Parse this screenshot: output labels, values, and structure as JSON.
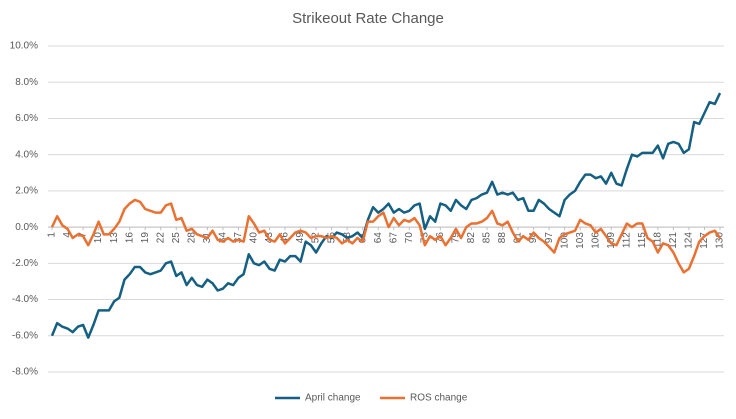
{
  "chart_data": {
    "type": "line",
    "title": "Strikeout Rate Change",
    "x": [
      1,
      2,
      3,
      4,
      5,
      6,
      7,
      8,
      9,
      10,
      11,
      12,
      13,
      14,
      15,
      16,
      17,
      18,
      19,
      20,
      21,
      22,
      23,
      24,
      25,
      26,
      27,
      28,
      29,
      30,
      31,
      32,
      33,
      34,
      35,
      36,
      37,
      38,
      39,
      40,
      41,
      42,
      43,
      44,
      45,
      46,
      47,
      48,
      49,
      50,
      51,
      52,
      53,
      54,
      55,
      56,
      57,
      58,
      59,
      60,
      61,
      62,
      63,
      64,
      65,
      66,
      67,
      68,
      69,
      70,
      71,
      72,
      73,
      74,
      75,
      76,
      77,
      78,
      79,
      80,
      81,
      82,
      83,
      84,
      85,
      86,
      87,
      88,
      89,
      90,
      91,
      92,
      93,
      94,
      95,
      96,
      97,
      98,
      99,
      100,
      101,
      102,
      103,
      104,
      105,
      106,
      107,
      108,
      109,
      110,
      111,
      112,
      113,
      114,
      115,
      116,
      117,
      118,
      119,
      120,
      121,
      122,
      123,
      124,
      125,
      126,
      127,
      128,
      129,
      130
    ],
    "xlim": [
      1,
      130
    ],
    "xticks": [
      1,
      4,
      7,
      10,
      13,
      16,
      19,
      22,
      25,
      28,
      31,
      34,
      37,
      40,
      43,
      46,
      49,
      52,
      55,
      58,
      61,
      64,
      67,
      70,
      73,
      76,
      79,
      82,
      85,
      88,
      91,
      94,
      97,
      100,
      103,
      106,
      109,
      112,
      115,
      118,
      121,
      124,
      127,
      130
    ],
    "ylim": [
      -8,
      10
    ],
    "yticks": [
      {
        "value": -8,
        "label": "-8.0%"
      },
      {
        "value": -6,
        "label": "-6.0%"
      },
      {
        "value": -4,
        "label": "-4.0%"
      },
      {
        "value": -2,
        "label": "-2.0%"
      },
      {
        "value": 0,
        "label": "0.0%"
      },
      {
        "value": 2,
        "label": "2.0%"
      },
      {
        "value": 4,
        "label": "4.0%"
      },
      {
        "value": 6,
        "label": "6.0%"
      },
      {
        "value": 8,
        "label": "8.0%"
      },
      {
        "value": 10,
        "label": "10.0%"
      }
    ],
    "grid": true,
    "legend": "bottom",
    "series": [
      {
        "name": "April change",
        "color": "#156082",
        "values": [
          -6.0,
          -5.3,
          -5.5,
          -5.6,
          -5.8,
          -5.5,
          -5.4,
          -6.1,
          -5.4,
          -4.6,
          -4.6,
          -4.6,
          -4.1,
          -3.9,
          -2.9,
          -2.6,
          -2.2,
          -2.2,
          -2.5,
          -2.6,
          -2.5,
          -2.4,
          -2.0,
          -1.9,
          -2.7,
          -2.5,
          -3.2,
          -2.8,
          -3.2,
          -3.3,
          -2.9,
          -3.1,
          -3.5,
          -3.4,
          -3.1,
          -3.2,
          -2.8,
          -2.6,
          -1.5,
          -2.0,
          -2.1,
          -1.9,
          -2.3,
          -2.4,
          -1.8,
          -1.9,
          -1.6,
          -1.6,
          -1.9,
          -0.8,
          -1.0,
          -1.4,
          -0.9,
          -0.5,
          -0.6,
          -0.3,
          -0.4,
          -0.6,
          -0.5,
          -0.3,
          -0.6,
          0.4,
          1.1,
          0.8,
          1.0,
          1.3,
          0.8,
          1.0,
          0.8,
          0.9,
          1.2,
          1.3,
          -0.1,
          0.6,
          0.3,
          1.3,
          1.2,
          0.9,
          1.5,
          1.2,
          1.0,
          1.5,
          1.6,
          1.8,
          1.9,
          2.5,
          1.8,
          1.9,
          1.8,
          1.9,
          1.5,
          1.6,
          0.9,
          0.9,
          1.5,
          1.3,
          1.0,
          0.8,
          0.6,
          1.5,
          1.8,
          2.0,
          2.5,
          2.9,
          2.9,
          2.7,
          2.8,
          2.4,
          3.0,
          2.4,
          2.3,
          3.2,
          4.0,
          3.9,
          4.1,
          4.1,
          4.1,
          4.5,
          3.8,
          4.6,
          4.7,
          4.6,
          4.1,
          4.3,
          5.8,
          5.7,
          6.3,
          6.9,
          6.8,
          7.4
        ]
      },
      {
        "name": "ROS change",
        "color": "#e97132",
        "values": [
          0.0,
          0.6,
          0.1,
          -0.1,
          -0.6,
          -0.4,
          -0.5,
          -1.0,
          -0.4,
          0.3,
          -0.4,
          -0.4,
          -0.1,
          0.3,
          1.0,
          1.3,
          1.5,
          1.4,
          1.0,
          0.9,
          0.8,
          0.8,
          1.2,
          1.3,
          0.4,
          0.5,
          -0.2,
          -0.1,
          -0.4,
          -0.5,
          -0.6,
          -0.2,
          -0.7,
          -0.8,
          -0.6,
          -0.8,
          -0.7,
          -0.8,
          0.6,
          0.2,
          -0.3,
          -0.2,
          -0.7,
          -0.8,
          -0.4,
          -0.9,
          -0.6,
          -0.3,
          -0.2,
          -0.3,
          -0.6,
          -0.5,
          -0.5,
          -0.6,
          -0.5,
          -0.6,
          -0.9,
          -0.7,
          -0.9,
          -0.6,
          -0.8,
          0.3,
          0.3,
          0.6,
          0.8,
          0.0,
          0.5,
          0.1,
          0.4,
          0.3,
          0.5,
          0.1,
          -1.0,
          -0.5,
          -0.7,
          -0.5,
          -1.0,
          -0.6,
          -0.1,
          -0.6,
          0.0,
          0.2,
          0.2,
          0.3,
          0.5,
          0.9,
          0.2,
          0.1,
          0.3,
          -0.3,
          -0.8,
          -0.5,
          -0.7,
          -0.3,
          -0.6,
          -0.8,
          -1.1,
          -1.4,
          -0.6,
          -0.4,
          -0.3,
          -0.2,
          0.4,
          0.2,
          0.1,
          -0.3,
          -0.1,
          -0.5,
          -0.9,
          -1.0,
          -0.4,
          0.2,
          0.0,
          0.2,
          0.2,
          -0.6,
          -0.8,
          -1.4,
          -0.9,
          -1.0,
          -1.4,
          -2.0,
          -2.5,
          -2.3,
          -1.6,
          -0.8,
          -0.5,
          -0.3,
          -0.2,
          -0.6
        ]
      }
    ]
  }
}
